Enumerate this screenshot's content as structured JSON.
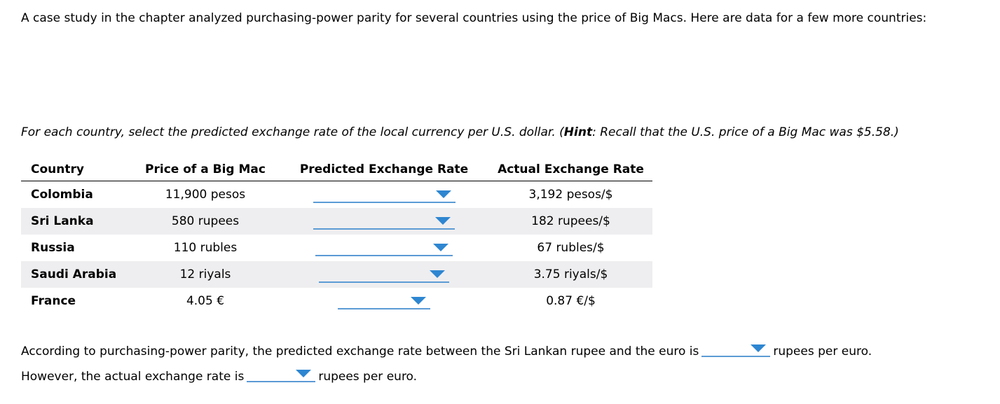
{
  "intro": "A case study in the chapter analyzed purchasing-power parity for several countries using the price of Big Macs. Here are data for a few more countries:",
  "instructions": {
    "part1": "For each country, select the predicted exchange rate of the local currency per U.S. dollar. (",
    "hint": "Hint",
    "part2": ": Recall that the U.S. price of a Big Mac was $5.58.)"
  },
  "table": {
    "headers": [
      "Country",
      "Price of a Big Mac",
      "Predicted Exchange Rate",
      "Actual Exchange Rate"
    ],
    "rows": [
      {
        "country": "Colombia",
        "price": "11,900 pesos",
        "predicted": "",
        "actual": "3,192 pesos/$"
      },
      {
        "country": "Sri Lanka",
        "price": "580 rupees",
        "predicted": "",
        "actual": "182 rupees/$"
      },
      {
        "country": "Russia",
        "price": "110 rubles",
        "predicted": "",
        "actual": "67 rubles/$"
      },
      {
        "country": "Saudi Arabia",
        "price": "12 riyals",
        "predicted": "",
        "actual": "3.75 riyals/$"
      },
      {
        "country": "France",
        "price": "4.05 €",
        "predicted": "",
        "actual": "0.87 €/$"
      }
    ]
  },
  "sentence1": {
    "before": "According to purchasing-power parity, the predicted exchange rate between the Sri Lankan rupee and the euro is",
    "after": "rupees per euro.",
    "selected": ""
  },
  "sentence2": {
    "before": "However, the actual exchange rate is",
    "after": "rupees per euro.",
    "selected": ""
  },
  "colors": {
    "accent": "#5b9bd5",
    "caret": "#2e86d1",
    "row_shade": "#eeeef0"
  }
}
